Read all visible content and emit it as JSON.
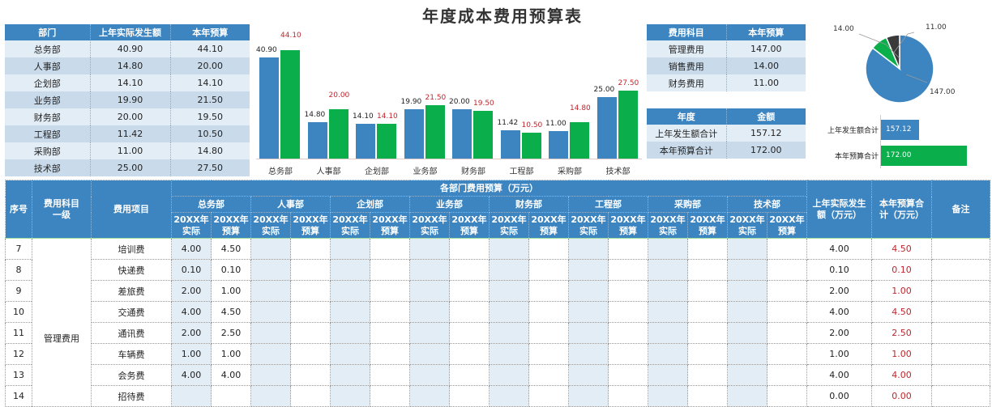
{
  "title": "年度成本费用预算表",
  "dept_table": {
    "headers": [
      "部门",
      "上年实际发生额",
      "本年预算"
    ],
    "rows": [
      [
        "总务部",
        "40.90",
        "44.10"
      ],
      [
        "人事部",
        "14.80",
        "20.00"
      ],
      [
        "企划部",
        "14.10",
        "14.10"
      ],
      [
        "业务部",
        "19.90",
        "21.50"
      ],
      [
        "财务部",
        "20.00",
        "19.50"
      ],
      [
        "工程部",
        "11.42",
        "10.50"
      ],
      [
        "采购部",
        "11.00",
        "14.80"
      ],
      [
        "技术部",
        "25.00",
        "27.50"
      ]
    ]
  },
  "category_table": {
    "headers": [
      "费用科目",
      "本年预算"
    ],
    "rows": [
      [
        "管理费用",
        "147.00"
      ],
      [
        "销售费用",
        "14.00"
      ],
      [
        "财务费用",
        "11.00"
      ]
    ]
  },
  "year_table": {
    "headers": [
      "年度",
      "金额"
    ],
    "rows": [
      [
        "上年发生额合计",
        "157.12"
      ],
      [
        "本年预算合计",
        "172.00"
      ]
    ]
  },
  "chart_data": [
    {
      "type": "bar",
      "title": "",
      "categories": [
        "总务部",
        "人事部",
        "企划部",
        "业务部",
        "财务部",
        "工程部",
        "采购部",
        "技术部"
      ],
      "series": [
        {
          "name": "上年实际发生额",
          "color": "#3d85c0",
          "values": [
            40.9,
            14.8,
            14.1,
            19.9,
            20.0,
            11.42,
            11.0,
            25.0
          ],
          "labels": [
            "40.90",
            "14.80",
            "14.10",
            "19.90",
            "20.00",
            "11.42",
            "11.00",
            "25.00"
          ]
        },
        {
          "name": "本年预算",
          "color": "#0aae4b",
          "values": [
            44.1,
            20.0,
            14.1,
            21.5,
            19.5,
            10.5,
            14.8,
            27.5
          ],
          "labels": [
            "44.10",
            "20.00",
            "14.10",
            "21.50",
            "19.50",
            "10.50",
            "14.80",
            "27.50"
          ]
        }
      ],
      "grid": false,
      "legend": "none"
    },
    {
      "type": "pie",
      "categories": [
        "管理费用",
        "销售费用",
        "财务费用"
      ],
      "values": [
        147.0,
        14.0,
        11.0
      ],
      "labels": [
        "147.00",
        "14.00",
        "11.00"
      ],
      "colors": [
        "#3d85c0",
        "#0aae4b",
        "#3a3a3a"
      ]
    },
    {
      "type": "bar",
      "orientation": "horizontal",
      "categories": [
        "上年发生额合计",
        "本年预算合计"
      ],
      "values": [
        157.12,
        172.0
      ],
      "labels": [
        "157.12",
        "172.00"
      ],
      "colors": [
        "#3d85c0",
        "#0aae4b"
      ]
    }
  ],
  "main_table": {
    "group_header": "各部门费用预算（万元）",
    "col_seq": "序号",
    "col_cat1": "费用科目一级",
    "col_item": "费用项目",
    "col_prev_total": "上年实际发生额（万元）",
    "col_budget_total": "本年预算合计（万元）",
    "col_note": "备注",
    "departments": [
      "总务部",
      "人事部",
      "企划部",
      "业务部",
      "财务部",
      "工程部",
      "采购部",
      "技术部"
    ],
    "sub_actual": "20XX年实际",
    "sub_budget": "20XX年预算",
    "category_merged": "管理费用",
    "rows": [
      {
        "seq": "7",
        "item": "培训费",
        "actual": "4.00",
        "budget": "4.50",
        "prev_total": "4.00",
        "budget_total": "4.50"
      },
      {
        "seq": "8",
        "item": "快递费",
        "actual": "0.10",
        "budget": "0.10",
        "prev_total": "0.10",
        "budget_total": "0.10"
      },
      {
        "seq": "9",
        "item": "差旅费",
        "actual": "2.00",
        "budget": "1.00",
        "prev_total": "2.00",
        "budget_total": "1.00"
      },
      {
        "seq": "10",
        "item": "交通费",
        "actual": "4.00",
        "budget": "4.50",
        "prev_total": "4.00",
        "budget_total": "4.50"
      },
      {
        "seq": "11",
        "item": "通讯费",
        "actual": "2.00",
        "budget": "2.50",
        "prev_total": "2.00",
        "budget_total": "2.50"
      },
      {
        "seq": "12",
        "item": "车辆费",
        "actual": "1.00",
        "budget": "1.00",
        "prev_total": "1.00",
        "budget_total": "1.00"
      },
      {
        "seq": "13",
        "item": "会务费",
        "actual": "4.00",
        "budget": "4.00",
        "prev_total": "4.00",
        "budget_total": "4.00"
      },
      {
        "seq": "14",
        "item": "招待费",
        "actual": "",
        "budget": "",
        "prev_total": "0.00",
        "budget_total": "0.00"
      }
    ]
  }
}
